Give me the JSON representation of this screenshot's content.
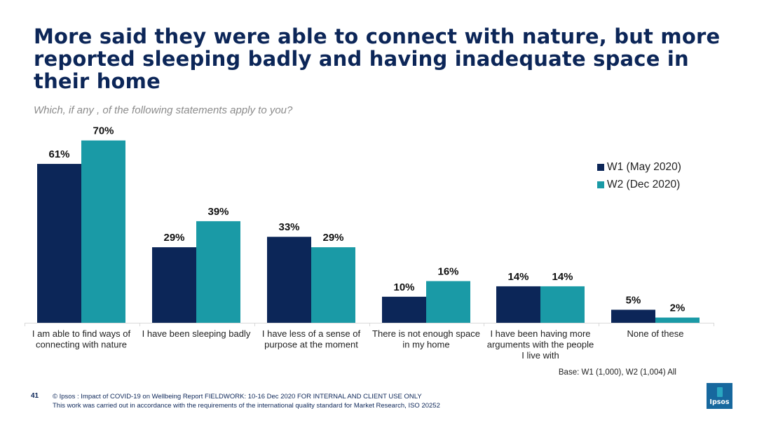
{
  "title": "More said they were able to connect with nature, but more reported sleeping badly and having inadequate space in their home",
  "subtitle": "Which, if any , of the following statements apply to you?",
  "legend": [
    {
      "label": "W1 (May 2020)",
      "color": "#0c2658"
    },
    {
      "label": "W2 (Dec 2020)",
      "color": "#1a9aa6"
    }
  ],
  "base_note": "Base: W1 (1,000), W2 (1,004) All",
  "footer": {
    "page_number": "41",
    "line1": "© Ipsos : Impact of COVID-19 on Wellbeing Report FIELDWORK: 10-16 Dec 2020 FOR INTERNAL AND CLIENT USE ONLY",
    "line2": "This work was carried out in accordance with the requirements of the international quality standard for Market Research, ISO 20252"
  },
  "logo_text": "Ipsos",
  "chart_data": {
    "type": "bar",
    "categories": [
      [
        "I am able to find ways of",
        "connecting with nature"
      ],
      [
        "I have been sleeping badly"
      ],
      [
        "I have less of a sense of",
        "purpose at the moment"
      ],
      [
        "There is not enough space",
        "in my home"
      ],
      [
        "I have been having more",
        "arguments with the people",
        "I live with"
      ],
      [
        "None of these"
      ]
    ],
    "series": [
      {
        "name": "W1 (May 2020)",
        "values": [
          61,
          29,
          33,
          10,
          14,
          5
        ],
        "labels": [
          "61%",
          "29%",
          "33%",
          "10%",
          "14%",
          "5%"
        ],
        "color": "#0c2658"
      },
      {
        "name": "W2 (Dec 2020)",
        "values": [
          70,
          39,
          29,
          16,
          14,
          2
        ],
        "labels": [
          "70%",
          "39%",
          "29%",
          "16%",
          "14%",
          "2%"
        ],
        "color": "#1a9aa6"
      }
    ],
    "ylim": [
      0,
      70
    ],
    "grid": false,
    "legend_position": "right"
  }
}
